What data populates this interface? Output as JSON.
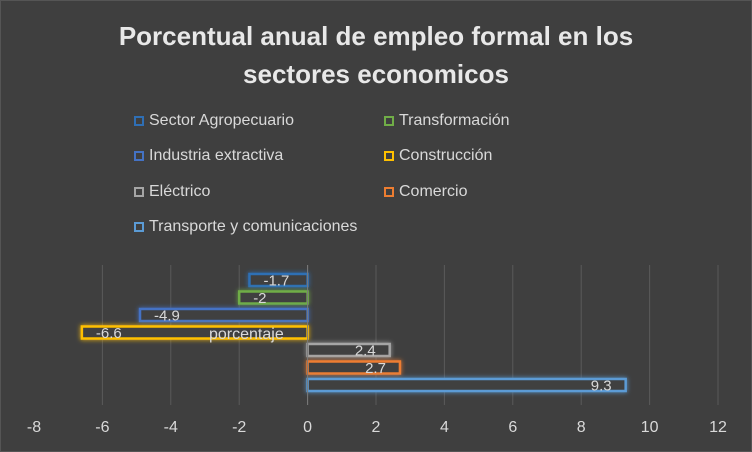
{
  "chart_data": {
    "type": "bar",
    "orientation": "horizontal",
    "title": "Porcentual anual de empleo formal en los sectores economicos",
    "category_label": "porcentaje",
    "xlim": [
      -8,
      12
    ],
    "x_ticks": [
      -8,
      -6,
      -4,
      -2,
      0,
      2,
      4,
      6,
      8,
      10,
      12
    ],
    "grid": true,
    "legend_position": "top",
    "series": [
      {
        "name": "Sector Agropecuario",
        "value": -1.7,
        "label": "-1.7",
        "color": "#2f6fb5"
      },
      {
        "name": "Transformación",
        "value": -2,
        "label": "-2",
        "color": "#70ad47"
      },
      {
        "name": "Industria extractiva",
        "value": -4.9,
        "label": "-4.9",
        "color": "#4472c4"
      },
      {
        "name": "Construcción",
        "value": -6.6,
        "label": "-6.6",
        "color": "#ffc000"
      },
      {
        "name": "Eléctrico",
        "value": 2.4,
        "label": "2.4",
        "color": "#a5a5a5"
      },
      {
        "name": "Comercio",
        "value": 2.7,
        "label": "2.7",
        "color": "#ed7d31"
      },
      {
        "name": "Transporte y comunicaciones",
        "value": 9.3,
        "label": "9.3",
        "color": "#5b9bd5"
      }
    ]
  }
}
